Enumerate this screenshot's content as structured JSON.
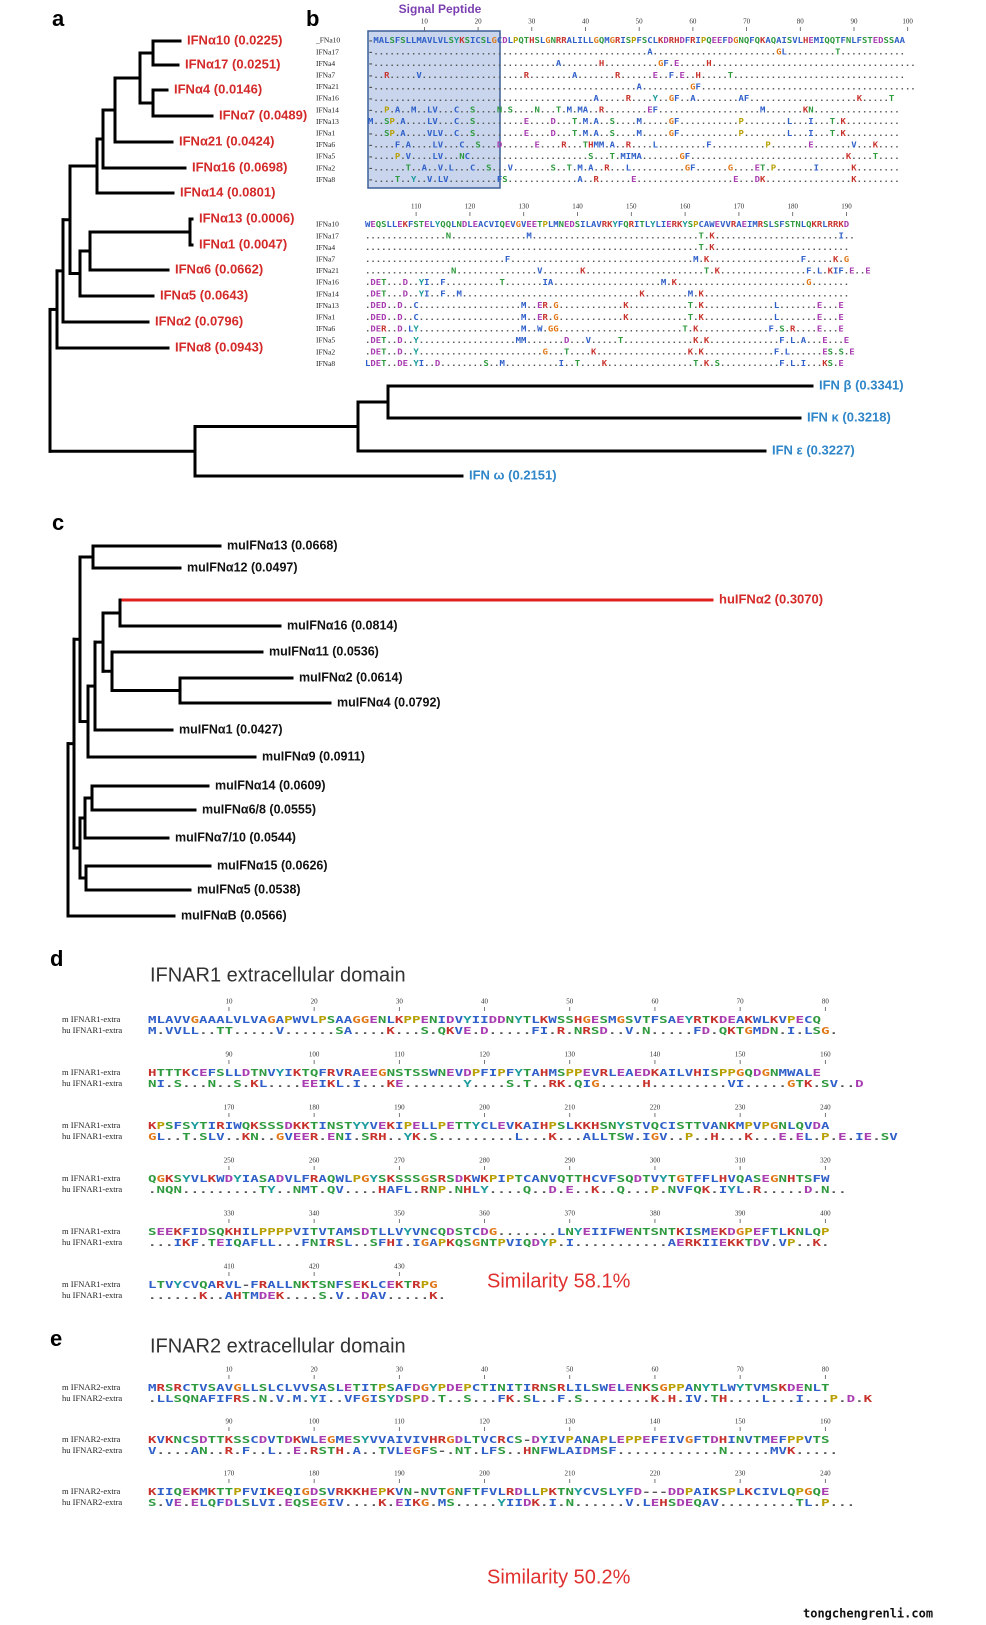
{
  "tree_a": {
    "label": "a",
    "leaves": [
      "IFNα10 (0.0225)",
      "IFNα17 (0.0251)",
      "IFNα4 (0.0146)",
      "IFNα7 (0.0489)",
      "IFNα21 (0.0424)",
      "IFNα16 (0.0698)",
      "IFNα14 (0.0801)",
      "IFNα13 (0.0006)",
      "IFNα1 (0.0047)",
      "IFNα6 (0.0662)",
      "IFNα5 (0.0643)",
      "IFNα2 (0.0796)",
      "IFNα8 (0.0943)"
    ],
    "outgroup": [
      "IFN β (0.3341)",
      "IFN κ (0.3218)",
      "IFN ε (0.3227)",
      "IFN ω (0.2151)"
    ]
  },
  "alignment_b": {
    "label": "b",
    "signal_peptide": "Signal Peptide",
    "blocks": [
      {
        "ruler": [
          10,
          20,
          30,
          40,
          50,
          60,
          70,
          80,
          90,
          100
        ],
        "rows": [
          {
            "name": "_FNa10",
            "seq": "-MALSFSLLMAVLVLSYKSICSLGCDLPQTHSLGNRRALILLGQMGRISPFSCLKDRHDFRIPQEEFDGNQFQKAQAISVLHEMIQQTFNLFSTEDSSAA"
          },
          {
            "name": "IFNa17",
            "seq": "-...................................................A.......................GL.........T............"
          },
          {
            "name": "IFNa4",
            "seq": "-..................................A.......H..........GF.E.....H......................................"
          },
          {
            "name": "IFNa7",
            "seq": "-..R.....V...................R........A.......R......E..F.E..H.....T................................"
          },
          {
            "name": "IFNa21",
            "seq": "-.................................................A.........GF........................................"
          },
          {
            "name": "IFNa16",
            "seq": "-.........................................A.....R....Y..GF..A........AF....................K.....T"
          },
          {
            "name": "IFNa14",
            "seq": "-..P.A..M..LV...C..S....N.S....N...T.M.MA..R........EF...................M.......KN................"
          },
          {
            "name": "IFNa13",
            "seq": "M..SP.A....LV...C..S.........E....D...T.M.A..S....M.....GF...........P........L...I...T.K.........."
          },
          {
            "name": "IFNa1",
            "seq": "-..SP.A....VLV..C..S.........E....D...T.M.A..S....M.....GF...........P........L...I...T.K.........."
          },
          {
            "name": "IFNa6",
            "seq": "-....F.A....LV...C..S...D......E....R...THMM.A..R....L.........F..........P.......E.......V...K...."
          },
          {
            "name": "IFNa5",
            "seq": "-....P.V....LV...NC......................S...T.MIMA.......GF.............................K....T...."
          },
          {
            "name": "IFNa2",
            "seq": "-......T..A..V.L...C..S...V.......S..T.M.A..R...L..........GF......G....ET.P.......I......K........"
          },
          {
            "name": "IFNa8",
            "seq": "-....T..Y..V.LV.........FS.............A..R......E..................E...DK................K........"
          }
        ]
      },
      {
        "ruler": [
          110,
          120,
          130,
          140,
          150,
          160,
          170,
          180,
          190
        ],
        "rows": [
          {
            "name": "IFNa10",
            "seq": "WEQSLLEKFSTELYQQLNDLEACVIQEVGVEETPLMNEDSILAVRKYFQRITLYLIERKYSPCAWEVVRAEIMRSLSFSTNLQKRLRRKD"
          },
          {
            "name": "IFNa17",
            "seq": "...............N..............M...............................T.K.......................I.."
          },
          {
            "name": "IFNa4",
            "seq": "..............................................................T.K........................."
          },
          {
            "name": "IFNa7",
            "seq": "..........................F..................................M.K.................F.....K.G"
          },
          {
            "name": "IFNa21",
            "seq": "................N...............V.......K......................T.K................F.L.KIF.E..E"
          },
          {
            "name": "IFNa16",
            "seq": ".DET...D..YI..F..........T.......IA....................M.K........................G......."
          },
          {
            "name": "IFNa14",
            "seq": ".DET...D..YI..F..M.................................K........M.K..........................."
          },
          {
            "name": "IFNa13",
            "seq": ".DED..D..C...................M..ER.G............K...........T.K.............L.......E...E"
          },
          {
            "name": "IFNa1",
            "seq": ".DED..D..C...................M..ER.G............K...........T.K.............L.......E...E"
          },
          {
            "name": "IFNa6",
            "seq": ".DER..D.LY...................M..W.GG.......................T.K.............F.S.R....E...E"
          },
          {
            "name": "IFNa5",
            "seq": ".DET..D..Y..................MM.......D...V.....T.............K.K.............F.L.A...E...E"
          },
          {
            "name": "IFNa2",
            "seq": ".DET..D..Y.......................G...T....K.................K.K.............F.L......ES.S.E"
          },
          {
            "name": "IFNa8",
            "seq": "LDET..DE.YI..D........S..M..........I..T....K................T.K.S...........F.L.I...KS.E"
          }
        ]
      }
    ]
  },
  "tree_c": {
    "label": "c",
    "leaves": [
      "muIFNα13 (0.0668)",
      "muIFNα12 (0.0497)",
      "huIFNα2 (0.3070)",
      "muIFNα16 (0.0814)",
      "muIFNα11 (0.0536)",
      "muIFNα2 (0.0614)",
      "muIFNα4 (0.0792)",
      "muIFNα1 (0.0427)",
      "muIFNα9 (0.0911)",
      "muIFNα14 (0.0609)",
      "muIFNα6/8 (0.0555)",
      "muIFNα7/10 (0.0544)",
      "muIFNα15 (0.0626)",
      "muIFNα5 (0.0538)",
      "muIFNαB (0.0566)"
    ]
  },
  "alignment_d": {
    "label": "d",
    "title": "IFNAR1 extracellular domain",
    "similarity": "Similarity 58.1%",
    "blocks": [
      {
        "ruler": [
          10,
          20,
          30,
          40,
          50,
          60,
          70,
          80
        ],
        "rows": [
          {
            "name": "m IFNAR1-extra",
            "seq": "MLAVVGAAALVLVAGAPWVLPSAAGGENLKPPENIDVYIIDDNYTLKWSSHGESMGSVTFSAEYRTKDEAKWLKVPECQ"
          },
          {
            "name": "hu IFNAR1-extra",
            "seq": "M.VVLL..TT.....V......SA....K...S.QKVE.D.....FI.R.NRSD..V.N.....FD.QKTGMDN.I.LSG."
          }
        ]
      },
      {
        "ruler": [
          90,
          100,
          110,
          120,
          130,
          140,
          150,
          160
        ],
        "rows": [
          {
            "name": "m IFNAR1-extra",
            "seq": "HTTTKCEFSLLDTNVYIKTQFRVRAEEGNSTSSWNEVDPFIPFYTAHMSPPEVRLEAEDKAILVHISPPGQDGNMWALE"
          },
          {
            "name": "hu IFNAR1-extra",
            "seq": "NI.S...N..S.KL....EEIKL.I...KE.......Y....S.T..RK.QIG.....H.........VI.....GTK.SV..D"
          }
        ]
      },
      {
        "ruler": [
          170,
          180,
          190,
          200,
          210,
          220,
          230,
          240
        ],
        "rows": [
          {
            "name": "m IFNAR1-extra",
            "seq": "KPSFSYTIRIWQKSSSDKKTINSTYYVEKIPELLPETTYCLEVKAIHPSLKKHSNYSTVQCISTTVANKMPVPGNLQVDA"
          },
          {
            "name": "hu IFNAR1-extra",
            "seq": "GL..T.SLV..KN..GVEER.ENI.SRH..YK.S.........L...K...ALLTSW.IGV..P..H...K...E.EL.P.E.IE.SV"
          }
        ]
      },
      {
        "ruler": [
          250,
          260,
          270,
          280,
          290,
          300,
          310,
          320
        ],
        "rows": [
          {
            "name": "m IFNAR1-extra",
            "seq": "QGKSYVLKWDYIASADVLFRAQWLPGYSKSSSGSRSDKWKPIPTCANVQTTHCVFSQDTVYTGTFFLHVQASEGNHTSFW"
          },
          {
            "name": "hu IFNAR1-extra",
            "seq": ".NQN.........TY..NMT.QV....HAFL.RNP.NHLY....Q..D.E..K..Q...P.NVFQK.IYL.R.....D.N.."
          }
        ]
      },
      {
        "ruler": [
          330,
          340,
          350,
          360,
          370,
          380,
          390,
          400
        ],
        "rows": [
          {
            "name": "m IFNAR1-extra",
            "seq": "SEEKFIDSQKHILPPPPVITVTAMSDTLLVYVNCQDSTCDG.......LNYEIIFWENTSNTKISMEKDGPEFTLKNLQP"
          },
          {
            "name": "hu IFNAR1-extra",
            "seq": "...IKF.TEIQAFLL...FNIRSL..SFHI.IGAPKQSGNTPVIQDYP.I...........AERKIIEKKTDV.VP..K."
          }
        ]
      },
      {
        "ruler": [
          410,
          420,
          430
        ],
        "rows": [
          {
            "name": "m IFNAR1-extra",
            "seq": "LTVYCVQARVL-FRALLNKTSNFSEKLCEKTRPG"
          },
          {
            "name": "hu IFNAR1-extra",
            "seq": "......K..AHTMDEK....S.V..DAV.....K."
          }
        ]
      }
    ]
  },
  "alignment_e": {
    "label": "e",
    "title": "IFNAR2 extracellular domain",
    "similarity": "Similarity 50.2%",
    "blocks": [
      {
        "ruler": [
          10,
          20,
          30,
          40,
          50,
          60,
          70,
          80
        ],
        "rows": [
          {
            "name": "m IFNAR2-extra",
            "seq": "MRSRCTVSAVGLLSLCLVVSASLETITPSAFDGYPDEPCTINITIRNSRLILSWELENKSGPPANYTLWYTVMSKDENLT"
          },
          {
            "name": "hu IFNAR2-extra",
            "seq": ".LLSQNAFIFRS.N.V.M.YI..VFGISYDSPD.T..S...FK.SL..F.S........K.H.IV.TH....L...I...P.D.K"
          }
        ]
      },
      {
        "ruler": [
          90,
          100,
          110,
          120,
          130,
          140,
          150,
          160
        ],
        "rows": [
          {
            "name": "m IFNAR2-extra",
            "seq": "KVKNCSDTTKSSCDVTDKWLEGMESYVVAIVIVHRGDLTVCRCS-DYIVPANAPLEPPEFEIVGFTDHINVTMEFPPVTS"
          },
          {
            "name": "hu IFNAR2-extra",
            "seq": "V....AN..R.F..L..E.RSTH.A..TVLEGFS-.NT.LFS..HNFWLAIDMSF............N.....MVK....."
          }
        ]
      },
      {
        "ruler": [
          170,
          180,
          190,
          200,
          210,
          220,
          230,
          240
        ],
        "rows": [
          {
            "name": "m IFNAR2-extra",
            "seq": "KIIQEKMKTTPFVIKEQIGDSVRKKHEPKVN-NVTGNFTFVLRDLLPKTNYCVSLYFD---DDPAIKSPLKCIVLQPGQE"
          },
          {
            "name": "hu IFNAR2-extra",
            "seq": "S.VE.ELQFDLSLVI.EQSEGIV....K.EIKG.MS.....YIIDK.I.N......V.LEHSDEQAV.........TL.P..."
          }
        ]
      }
    ]
  },
  "watermark": "tongchengrenli.com"
}
